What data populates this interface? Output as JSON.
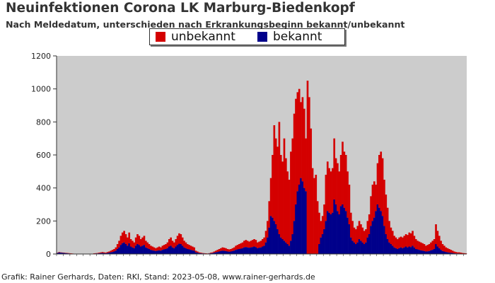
{
  "title": "Neuinfektionen Corona LK Marburg-Biedenkopf",
  "subtitle": "Nach Meldedatum, unterschieden nach Erkrankungsbeginn bekannt/unbekannt",
  "credit": "Grafik: Rainer Gerhards, Daten: RKI, Stand: 2023-05-08, www.rainer-gerhards.de",
  "colors": {
    "plot_bg": "#cccccc",
    "unbekannt": "#d40000",
    "bekannt": "#00008b"
  },
  "chart_data": {
    "type": "bar",
    "stacked": true,
    "ylim": [
      0,
      1200
    ],
    "yticks": [
      0,
      200,
      400,
      600,
      800,
      1000,
      1200
    ],
    "legend_position": "top-center",
    "grid": false,
    "series_order": [
      "unbekannt",
      "bekannt"
    ],
    "series": [
      {
        "name": "unbekannt",
        "color": "#d40000"
      },
      {
        "name": "bekannt",
        "color": "#00008b"
      }
    ],
    "total_values": [
      8,
      12,
      10,
      9,
      8,
      7,
      6,
      5,
      4,
      3,
      2,
      1,
      1,
      0,
      0,
      0,
      0,
      0,
      0,
      1,
      1,
      2,
      4,
      5,
      6,
      8,
      10,
      12,
      10,
      8,
      12,
      15,
      20,
      25,
      30,
      40,
      60,
      80,
      110,
      130,
      140,
      120,
      100,
      130,
      90,
      80,
      70,
      100,
      120,
      110,
      90,
      100,
      110,
      80,
      70,
      60,
      50,
      45,
      40,
      35,
      40,
      45,
      40,
      50,
      55,
      60,
      70,
      90,
      100,
      80,
      70,
      90,
      110,
      125,
      120,
      100,
      80,
      70,
      60,
      55,
      50,
      45,
      40,
      20,
      15,
      10,
      8,
      6,
      5,
      4,
      3,
      5,
      8,
      10,
      15,
      20,
      25,
      30,
      35,
      40,
      38,
      35,
      30,
      28,
      30,
      35,
      40,
      50,
      55,
      60,
      65,
      70,
      80,
      85,
      80,
      75,
      80,
      85,
      90,
      85,
      70,
      75,
      80,
      90,
      100,
      140,
      200,
      320,
      460,
      600,
      780,
      700,
      650,
      800,
      600,
      560,
      700,
      580,
      500,
      450,
      620,
      700,
      850,
      940,
      980,
      1000,
      920,
      950,
      880,
      700,
      1050,
      950,
      760,
      520,
      460,
      480,
      320,
      250,
      200,
      230,
      300,
      480,
      560,
      520,
      500,
      520,
      700,
      580,
      550,
      500,
      600,
      680,
      620,
      600,
      500,
      420,
      250,
      200,
      160,
      150,
      170,
      200,
      180,
      160,
      140,
      150,
      200,
      240,
      350,
      420,
      440,
      420,
      550,
      600,
      620,
      580,
      450,
      360,
      280,
      200,
      160,
      140,
      110,
      100,
      90,
      100,
      105,
      100,
      110,
      120,
      115,
      130,
      125,
      140,
      110,
      90,
      80,
      75,
      70,
      65,
      60,
      50,
      55,
      60,
      70,
      80,
      90,
      180,
      140,
      110,
      80,
      60,
      50,
      40,
      35,
      30,
      25,
      20,
      15,
      12,
      10,
      10,
      8,
      6,
      5,
      4
    ],
    "bekannt_values": [
      6,
      9,
      8,
      7,
      6,
      5,
      4,
      3,
      2,
      2,
      1,
      1,
      0,
      0,
      0,
      0,
      0,
      0,
      0,
      0,
      0,
      1,
      2,
      3,
      3,
      4,
      5,
      6,
      5,
      4,
      6,
      8,
      10,
      12,
      15,
      20,
      30,
      40,
      55,
      65,
      70,
      60,
      50,
      65,
      45,
      40,
      35,
      50,
      60,
      55,
      45,
      50,
      55,
      40,
      35,
      30,
      25,
      22,
      20,
      18,
      20,
      22,
      20,
      25,
      28,
      30,
      35,
      45,
      50,
      40,
      35,
      45,
      55,
      62,
      60,
      50,
      40,
      35,
      30,
      28,
      25,
      22,
      20,
      10,
      8,
      5,
      4,
      3,
      3,
      2,
      2,
      3,
      4,
      5,
      8,
      10,
      12,
      15,
      18,
      20,
      19,
      18,
      15,
      14,
      15,
      18,
      20,
      25,
      28,
      30,
      32,
      35,
      40,
      42,
      40,
      38,
      40,
      42,
      45,
      42,
      35,
      38,
      40,
      45,
      50,
      70,
      100,
      160,
      230,
      220,
      200,
      180,
      150,
      120,
      100,
      90,
      80,
      70,
      60,
      50,
      80,
      120,
      200,
      300,
      380,
      420,
      460,
      440,
      400,
      380,
      0,
      0,
      0,
      0,
      0,
      0,
      0,
      60,
      100,
      120,
      150,
      200,
      260,
      250,
      240,
      250,
      330,
      300,
      260,
      240,
      290,
      300,
      280,
      260,
      220,
      180,
      100,
      80,
      70,
      60,
      70,
      90,
      80,
      70,
      60,
      70,
      100,
      120,
      170,
      200,
      220,
      260,
      300,
      280,
      260,
      230,
      170,
      120,
      90,
      70,
      60,
      50,
      40,
      35,
      30,
      35,
      40,
      35,
      40,
      45,
      40,
      45,
      42,
      50,
      40,
      30,
      28,
      25,
      22,
      20,
      18,
      15,
      16,
      18,
      22,
      25,
      30,
      60,
      45,
      35,
      25,
      18,
      15,
      12,
      10,
      8,
      7,
      6,
      4,
      3,
      3,
      3,
      2,
      2,
      2,
      1
    ]
  }
}
